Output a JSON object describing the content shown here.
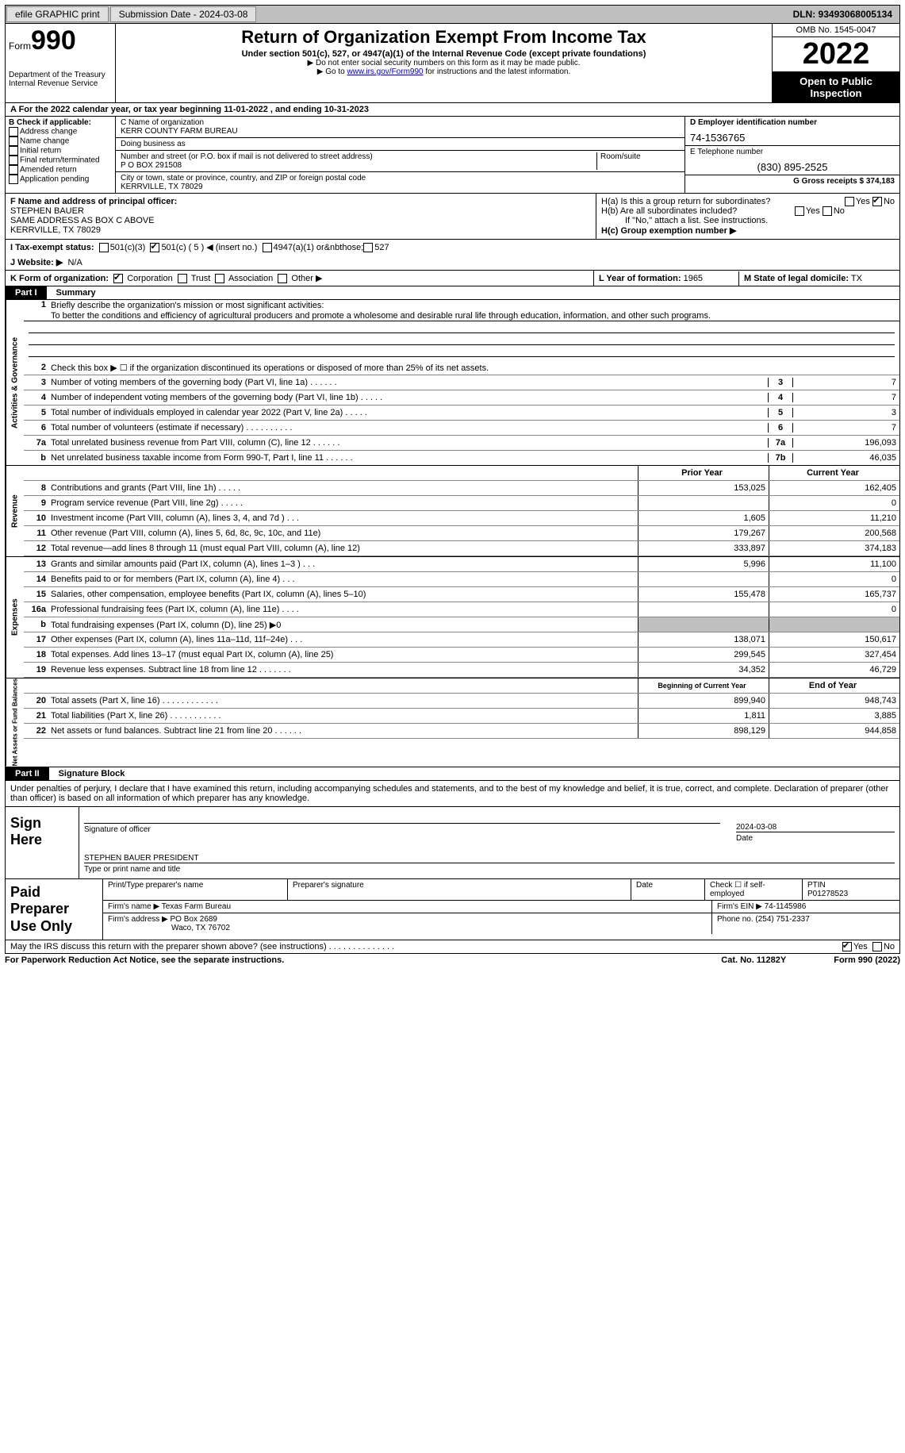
{
  "topbar": {
    "efile": "efile GRAPHIC print",
    "submission_label": "Submission Date - 2024-03-08",
    "dln": "DLN: 93493068005134"
  },
  "header": {
    "form_word": "Form",
    "form_num": "990",
    "dept": "Department of the Treasury",
    "irs": "Internal Revenue Service",
    "title": "Return of Organization Exempt From Income Tax",
    "subtitle": "Under section 501(c), 527, or 4947(a)(1) of the Internal Revenue Code (except private foundations)",
    "note1": "▶ Do not enter social security numbers on this form as it may be made public.",
    "note2_pre": "▶ Go to ",
    "note2_link": "www.irs.gov/Form990",
    "note2_post": " for instructions and the latest information.",
    "omb": "OMB No. 1545-0047",
    "year": "2022",
    "inspection": "Open to Public Inspection"
  },
  "rowA": "A For the 2022 calendar year, or tax year beginning 11-01-2022    , and ending 10-31-2023",
  "colB": {
    "label": "B Check if applicable:",
    "items": [
      "Address change",
      "Name change",
      "Initial return",
      "Final return/terminated",
      "Amended return",
      "Application pending"
    ]
  },
  "colC": {
    "name_label": "C Name of organization",
    "name": "KERR COUNTY FARM BUREAU",
    "dba_label": "Doing business as",
    "dba": "",
    "addr_label": "Number and street (or P.O. box if mail is not delivered to street address)",
    "room_label": "Room/suite",
    "addr": "P O BOX 291508",
    "city_label": "City or town, state or province, country, and ZIP or foreign postal code",
    "city": "KERRVILLE, TX   78029"
  },
  "colDE": {
    "d_label": "D Employer identification number",
    "d_val": "74-1536765",
    "e_label": "E Telephone number",
    "e_val": "(830) 895-2525",
    "g_label": "G Gross receipts $",
    "g_val": "374,183"
  },
  "rowF": {
    "label": "F Name and address of principal officer:",
    "name": "STEPHEN BAUER",
    "addr1": "SAME ADDRESS AS BOX C ABOVE",
    "addr2": "KERRVILLE, TX   78029"
  },
  "rowH": {
    "ha": "H(a)  Is this a group return for subordinates?",
    "ha_yes": "Yes",
    "ha_no": "No",
    "hb": "H(b)  Are all subordinates included?",
    "hb_yes": "Yes",
    "hb_no": "No",
    "hb_note": "If \"No,\" attach a list. See instructions.",
    "hc": "H(c)  Group exemption number ▶"
  },
  "rowI": {
    "label": "I   Tax-exempt status:",
    "c3": "501(c)(3)",
    "c_other": "501(c) ( 5 ) ◀ (insert no.)",
    "a4947": "4947(a)(1) or",
    "s527": "527"
  },
  "rowJ": {
    "label": "J   Website: ▶",
    "val": "N/A"
  },
  "rowK": {
    "label": "K Form of organization:",
    "corp": "Corporation",
    "trust": "Trust",
    "assoc": "Association",
    "other": "Other ▶"
  },
  "rowL": {
    "label": "L Year of formation:",
    "val": "1965"
  },
  "rowM": {
    "label": "M State of legal domicile:",
    "val": "TX"
  },
  "part1": {
    "num": "Part I",
    "title": "Summary"
  },
  "summary": {
    "l1_label": "Briefly describe the organization's mission or most significant activities:",
    "l1_text": "To better the conditions and efficiency of agricultural producers and promote a wholesome and desirable rural life through education, information, and other such programs.",
    "l2": "Check this box ▶ ☐  if the organization discontinued its operations or disposed of more than 25% of its net assets.",
    "l3": "Number of voting members of the governing body (Part VI, line 1a)   .    .    .    .    .    .",
    "l3b": "3",
    "l3v": "7",
    "l4": "Number of independent voting members of the governing body (Part VI, line 1b)    .    .    .    .    .",
    "l4b": "4",
    "l4v": "7",
    "l5": "Total number of individuals employed in calendar year 2022 (Part V, line 2a)    .    .    .    .    .",
    "l5b": "5",
    "l5v": "3",
    "l6": "Total number of volunteers (estimate if necessary)    .    .    .    .    .    .    .    .    .    .",
    "l6b": "6",
    "l6v": "7",
    "l7a": "Total unrelated business revenue from Part VIII, column (C), line 12    .    .    .    .    .    .",
    "l7ab": "7a",
    "l7av": "196,093",
    "l7b": "Net unrelated business taxable income from Form 990-T, Part I, line 11    .    .    .    .    .    .",
    "l7bb": "7b",
    "l7bv": "46,035",
    "prior_h": "Prior Year",
    "curr_h": "Current Year",
    "rev": [
      {
        "n": "8",
        "t": "Contributions and grants (Part VIII, line 1h)    .    .    .    .    .",
        "p": "153,025",
        "c": "162,405"
      },
      {
        "n": "9",
        "t": "Program service revenue (Part VIII, line 2g)    .    .    .    .    .",
        "p": "",
        "c": "0"
      },
      {
        "n": "10",
        "t": "Investment income (Part VIII, column (A), lines 3, 4, and 7d )    .    .    .",
        "p": "1,605",
        "c": "11,210"
      },
      {
        "n": "11",
        "t": "Other revenue (Part VIII, column (A), lines 5, 6d, 8c, 9c, 10c, and 11e)",
        "p": "179,267",
        "c": "200,568"
      },
      {
        "n": "12",
        "t": "Total revenue—add lines 8 through 11 (must equal Part VIII, column (A), line 12)",
        "p": "333,897",
        "c": "374,183"
      }
    ],
    "exp": [
      {
        "n": "13",
        "t": "Grants and similar amounts paid (Part IX, column (A), lines 1–3 )    .    .    .",
        "p": "5,996",
        "c": "11,100"
      },
      {
        "n": "14",
        "t": "Benefits paid to or for members (Part IX, column (A), line 4)    .    .    .",
        "p": "",
        "c": "0"
      },
      {
        "n": "15",
        "t": "Salaries, other compensation, employee benefits (Part IX, column (A), lines 5–10)",
        "p": "155,478",
        "c": "165,737"
      },
      {
        "n": "16a",
        "t": "Professional fundraising fees (Part IX, column (A), line 11e)    .    .    .    .",
        "p": "",
        "c": "0"
      },
      {
        "n": "b",
        "t": "Total fundraising expenses (Part IX, column (D), line 25) ▶0",
        "p": "",
        "c": "",
        "shade": true
      },
      {
        "n": "17",
        "t": "Other expenses (Part IX, column (A), lines 11a–11d, 11f–24e)    .    .    .",
        "p": "138,071",
        "c": "150,617"
      },
      {
        "n": "18",
        "t": "Total expenses. Add lines 13–17 (must equal Part IX, column (A), line 25)",
        "p": "299,545",
        "c": "327,454"
      },
      {
        "n": "19",
        "t": "Revenue less expenses. Subtract line 18 from line 12 .    .    .    .    .    .    .",
        "p": "34,352",
        "c": "46,729"
      }
    ],
    "na_prior_h": "Beginning of Current Year",
    "na_curr_h": "End of Year",
    "na": [
      {
        "n": "20",
        "t": "Total assets (Part X, line 16) .    .    .    .    .    .    .    .    .    .    .    .",
        "p": "899,940",
        "c": "948,743"
      },
      {
        "n": "21",
        "t": "Total liabilities (Part X, line 26) .    .    .    .    .    .    .    .    .    .    .",
        "p": "1,811",
        "c": "3,885"
      },
      {
        "n": "22",
        "t": "Net assets or fund balances. Subtract line 21 from line 20 .    .    .    .    .    .",
        "p": "898,129",
        "c": "944,858"
      }
    ],
    "side_ag": "Activities & Governance",
    "side_rev": "Revenue",
    "side_exp": "Expenses",
    "side_na": "Net Assets or Fund Balances"
  },
  "part2": {
    "num": "Part II",
    "title": "Signature Block"
  },
  "sig": {
    "penalties": "Under penalties of perjury, I declare that I have examined this return, including accompanying schedules and statements, and to the best of my knowledge and belief, it is true, correct, and complete. Declaration of preparer (other than officer) is based on all information of which preparer has any knowledge.",
    "sign_here": "Sign Here",
    "sig_officer": "Signature of officer",
    "date_lbl": "Date",
    "date_val": "2024-03-08",
    "name_title": "STEPHEN BAUER  PRESIDENT",
    "type_name": "Type or print name and title"
  },
  "prep": {
    "title": "Paid Preparer Use Only",
    "print_name": "Print/Type preparer's name",
    "prep_sig": "Preparer's signature",
    "date": "Date",
    "check_self": "Check ☐ if self-employed",
    "ptin_lbl": "PTIN",
    "ptin": "P01278523",
    "firm_name_lbl": "Firm's name    ▶",
    "firm_name": "Texas Farm Bureau",
    "firm_ein_lbl": "Firm's EIN ▶",
    "firm_ein": "74-1145986",
    "firm_addr_lbl": "Firm's address ▶",
    "firm_addr1": "PO Box 2689",
    "firm_addr2": "Waco, TX   76702",
    "phone_lbl": "Phone no.",
    "phone": "(254) 751-2337"
  },
  "discuss": {
    "text": "May the IRS discuss this return with the preparer shown above? (see instructions)    .    .    .    .    .    .    .    .    .    .    .    .    .    .",
    "yes": "Yes",
    "no": "No"
  },
  "footer": {
    "pra": "For Paperwork Reduction Act Notice, see the separate instructions.",
    "cat": "Cat. No. 11282Y",
    "form": "Form 990 (2022)"
  }
}
